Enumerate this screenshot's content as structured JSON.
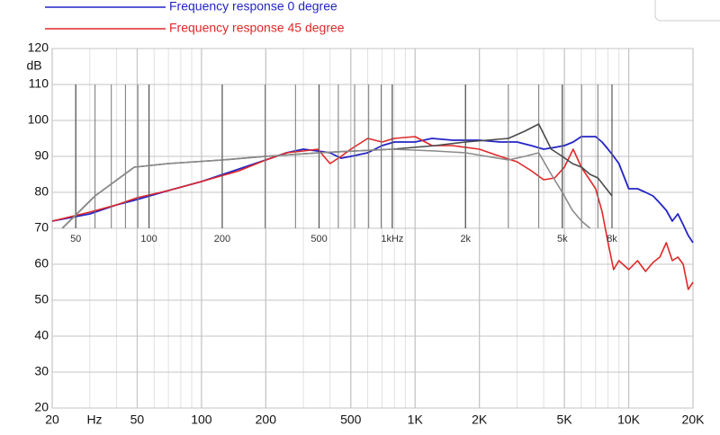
{
  "chart_data": [
    {
      "type": "line",
      "log_x": true,
      "grid": true,
      "ylabel": "dB",
      "xlabel": "Hz",
      "xlim": [
        20,
        20000
      ],
      "ylim": [
        20,
        120
      ],
      "xticks": [
        20,
        50,
        100,
        200,
        500,
        {
          "value": 1000,
          "label": "1K"
        },
        {
          "value": 2000,
          "label": "2K"
        },
        {
          "value": 5000,
          "label": "5K"
        },
        {
          "value": 10000,
          "label": "10K"
        },
        {
          "value": 20000,
          "label": "20K"
        }
      ],
      "yticks": [
        20,
        30,
        40,
        50,
        60,
        70,
        80,
        90,
        100,
        110,
        120
      ],
      "x": [
        20,
        30,
        40,
        50,
        70,
        100,
        150,
        200,
        250,
        300,
        350,
        400,
        450,
        500,
        600,
        700,
        800,
        1000,
        1200,
        1500,
        2000,
        2500,
        3000,
        3500,
        4000,
        4500,
        5000,
        5500,
        6000,
        7000,
        7500,
        8000,
        8500,
        9000,
        10000,
        11000,
        12000,
        13000,
        14000,
        15000,
        16000,
        17000,
        18000,
        19000,
        20000
      ],
      "series": [
        {
          "name": "Frequency response 0 degree",
          "color": "#2424c8",
          "values": [
            72,
            74,
            76.5,
            78,
            80.5,
            83,
            86.5,
            89,
            91,
            92,
            91.5,
            91,
            89.5,
            90,
            91,
            93,
            94,
            94,
            95,
            94.5,
            94.5,
            94,
            94,
            93,
            92,
            92.5,
            93,
            94,
            95.5,
            95.5,
            94,
            92,
            90,
            88,
            81,
            81,
            80,
            79,
            77,
            75,
            72,
            74,
            71,
            68,
            66
          ]
        },
        {
          "name": "Frequency response 45 degree",
          "color": "#e02828",
          "values": [
            72,
            74.5,
            76.5,
            78.5,
            80.5,
            83,
            86,
            89,
            91,
            91.5,
            92,
            88,
            90,
            92,
            95,
            94,
            95,
            95.5,
            93,
            93,
            92,
            90,
            88.5,
            86,
            83.5,
            84,
            87,
            92,
            87,
            81,
            74.75,
            66,
            58.5,
            61,
            58.5,
            61,
            58,
            60.5,
            62,
            66,
            61,
            62,
            60,
            53,
            55
          ]
        }
      ]
    },
    {
      "type": "line",
      "log_x": true,
      "grid": true,
      "xlim": [
        40,
        8000
      ],
      "ylim": [
        70,
        110
      ],
      "xticks": [
        50,
        100,
        200,
        500,
        {
          "value": 1000,
          "label": "1kHz"
        },
        {
          "value": 2000,
          "label": "2k"
        },
        {
          "value": 5000,
          "label": "5k"
        },
        {
          "value": 8000,
          "label": "8k"
        }
      ],
      "x": [
        44,
        60,
        87,
        120,
        200,
        300,
        500,
        700,
        1000,
        1500,
        2000,
        3000,
        3500,
        4000,
        4500,
        5000,
        5500,
        6000,
        6500,
        7000,
        8000
      ],
      "series": [
        {
          "color": "#4a4a4a",
          "values": [
            70,
            79,
            87,
            88,
            89,
            90,
            91,
            91.5,
            92,
            93,
            94,
            95,
            97,
            99,
            92,
            90,
            88,
            87,
            85,
            84,
            79
          ]
        },
        {
          "color": "#8a8a8a",
          "values": [
            70,
            79,
            87,
            88,
            89,
            90,
            91,
            91.5,
            92,
            91.5,
            91,
            89,
            90,
            91,
            85,
            80,
            75,
            72,
            70,
            null,
            null
          ]
        }
      ]
    }
  ]
}
